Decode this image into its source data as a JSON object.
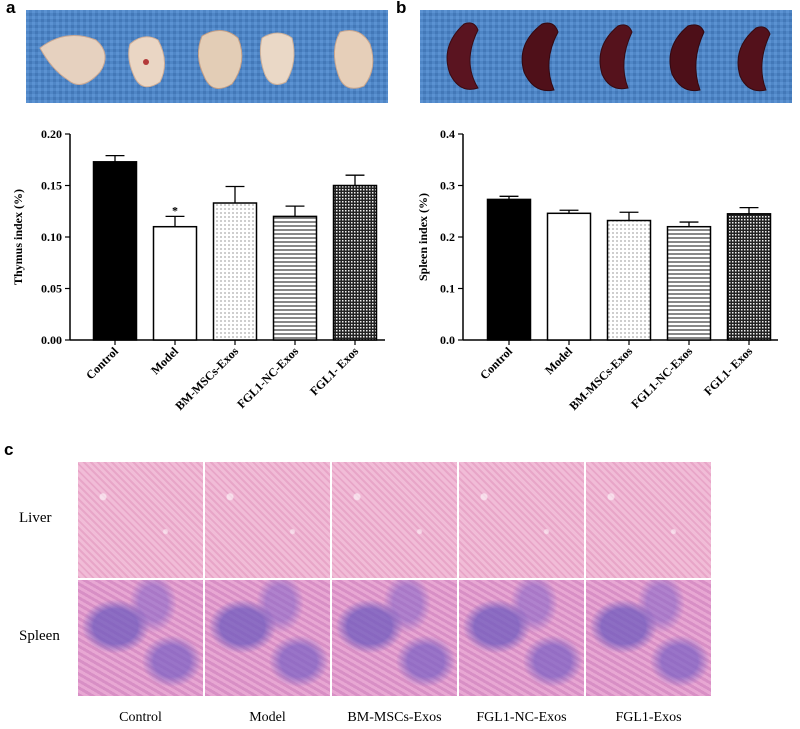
{
  "panels": {
    "a": "a",
    "b": "b",
    "c": "c"
  },
  "chart_data": [
    {
      "type": "bar",
      "panel": "a",
      "ylabel": "Thymus index (%)",
      "categories": [
        "Control",
        "Model",
        "BM-MSCs-Exos",
        "FGL1-NC-Exos",
        "FGL1- Exos"
      ],
      "values": [
        0.173,
        0.11,
        0.133,
        0.12,
        0.15
      ],
      "errors": [
        0.006,
        0.01,
        0.016,
        0.01,
        0.01
      ],
      "ylim": [
        0,
        0.2
      ],
      "yticks": [
        0.0,
        0.05,
        0.1,
        0.15,
        0.2
      ],
      "ytick_labels": [
        "0.00",
        "0.05",
        "0.10",
        "0.15",
        "0.20"
      ],
      "annotations": [
        {
          "category": "Model",
          "text": "*"
        }
      ],
      "fills": [
        "solid",
        "white",
        "dots",
        "hlines",
        "checker"
      ]
    },
    {
      "type": "bar",
      "panel": "b",
      "ylabel": "Spleen index (%)",
      "categories": [
        "Control",
        "Model",
        "BM-MSCs-Exos",
        "FGL1-NC-Exos",
        "FGL1- Exos"
      ],
      "values": [
        0.273,
        0.246,
        0.232,
        0.22,
        0.245
      ],
      "errors": [
        0.006,
        0.006,
        0.016,
        0.009,
        0.012
      ],
      "ylim": [
        0,
        0.4
      ],
      "yticks": [
        0.0,
        0.1,
        0.2,
        0.3,
        0.4
      ],
      "ytick_labels": [
        "0.0",
        "0.1",
        "0.2",
        "0.3",
        "0.4"
      ],
      "annotations": [],
      "fills": [
        "solid",
        "white",
        "dots",
        "hlines",
        "checker"
      ]
    }
  ],
  "histology": {
    "rows": [
      "Liver",
      "Spleen"
    ],
    "columns": [
      "Control",
      "Model",
      "BM-MSCs-Exos",
      "FGL1-NC-Exos",
      "FGL1-Exos"
    ]
  }
}
